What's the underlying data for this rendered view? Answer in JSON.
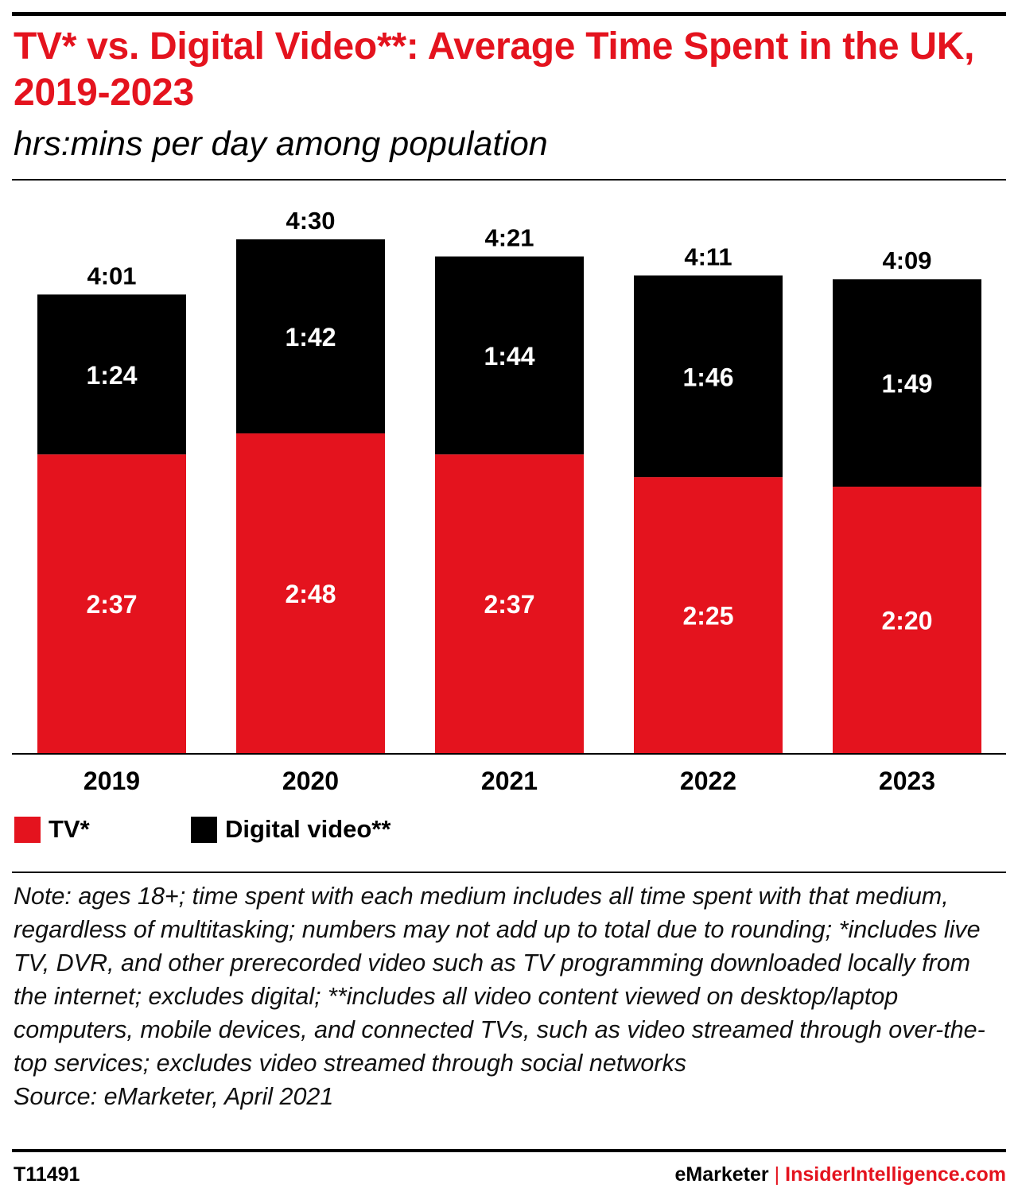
{
  "header": {
    "title": "TV* vs. Digital Video**: Average Time Spent in the UK, 2019-2023",
    "subtitle": "hrs:mins per day among population"
  },
  "chart_data": {
    "type": "bar",
    "stacked": true,
    "categories": [
      "2019",
      "2020",
      "2021",
      "2022",
      "2023"
    ],
    "series": [
      {
        "name": "TV*",
        "color": "#e4131e",
        "values": [
          157,
          168,
          157,
          145,
          140
        ],
        "labels": [
          "2:37",
          "2:48",
          "2:37",
          "2:25",
          "2:20"
        ]
      },
      {
        "name": "Digital video**",
        "color": "#000000",
        "values": [
          84,
          102,
          104,
          106,
          109
        ],
        "labels": [
          "1:24",
          "1:42",
          "1:44",
          "1:46",
          "1:49"
        ]
      }
    ],
    "totals": [
      241,
      270,
      261,
      251,
      249
    ],
    "total_labels": [
      "4:01",
      "4:30",
      "4:21",
      "4:11",
      "4:09"
    ],
    "ylim": [
      0,
      270
    ],
    "legend_position": "bottom-left",
    "grid": false
  },
  "notes": {
    "note": "Note: ages 18+; time spent with each medium includes all time spent with that medium, regardless of multitasking; numbers may not add up to total due to rounding; *includes live TV, DVR, and other prerecorded video such as TV programming downloaded locally from the internet; excludes digital; **includes all video content viewed on desktop/laptop computers, mobile devices, and connected TVs, such as video streamed through over-the-top services; excludes video streamed through social networks",
    "source": "Source: eMarketer, April 2021"
  },
  "footer": {
    "chart_id": "T11491",
    "brand": "eMarketer",
    "separator": "|",
    "site": "InsiderIntelligence.com"
  }
}
